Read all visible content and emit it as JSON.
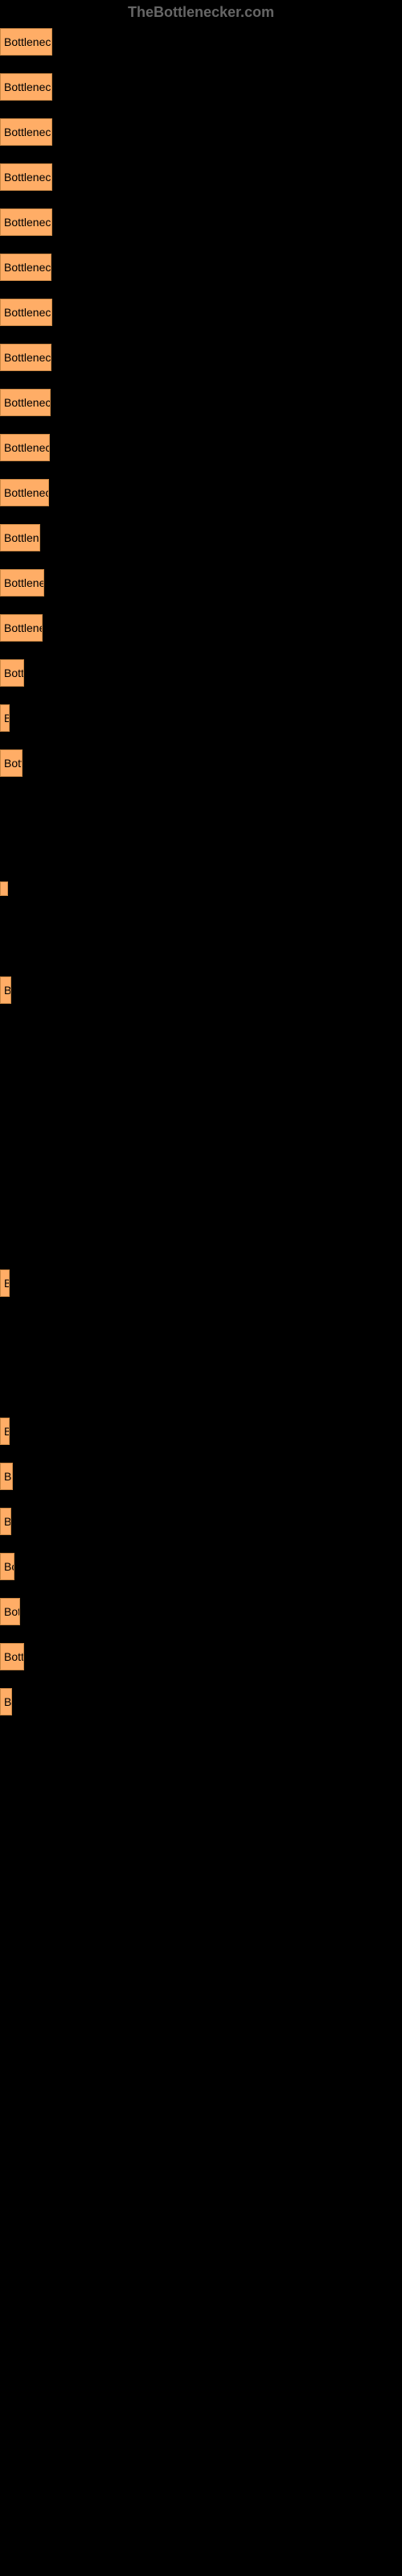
{
  "watermark": "TheBottlenecker.com",
  "item_bg_color": "#ffad66",
  "item_border_color": "#cc8844",
  "bg_color": "#000000",
  "items": [
    {
      "label": "Bottleneck rest",
      "width": 65
    },
    {
      "label": "Bottleneck rest",
      "width": 65
    },
    {
      "label": "Bottleneck rest",
      "width": 65
    },
    {
      "label": "Bottleneck rest",
      "width": 65
    },
    {
      "label": "Bottleneck rest",
      "width": 65
    },
    {
      "label": "Bottleneck re",
      "width": 64
    },
    {
      "label": "Bottleneck rest",
      "width": 65
    },
    {
      "label": "Bottleneck res",
      "width": 64
    },
    {
      "label": "Bottleneck re",
      "width": 63
    },
    {
      "label": "Bottleneck re",
      "width": 62
    },
    {
      "label": "Bottleneck r",
      "width": 61
    },
    {
      "label": "Bottleneck",
      "width": 50
    },
    {
      "label": "Bottleneck r",
      "width": 55
    },
    {
      "label": "Bottleneck",
      "width": 53
    },
    {
      "label": "Bottler",
      "width": 30
    },
    {
      "label": "B",
      "width": 12
    },
    {
      "label": "Bottle",
      "width": 28
    },
    {
      "label": "",
      "width": 2,
      "margin_top": 130
    },
    {
      "label": "Bo",
      "width": 14,
      "margin_top": 100
    },
    {
      "label": "B",
      "width": 12,
      "margin_top": 330
    },
    {
      "label": "B",
      "width": 12,
      "margin_top": 150
    },
    {
      "label": "Bot",
      "width": 16
    },
    {
      "label": "Bo",
      "width": 14
    },
    {
      "label": "Bot",
      "width": 18
    },
    {
      "label": "Botte",
      "width": 25
    },
    {
      "label": "Bottle",
      "width": 30
    },
    {
      "label": "Bo",
      "width": 15
    }
  ]
}
